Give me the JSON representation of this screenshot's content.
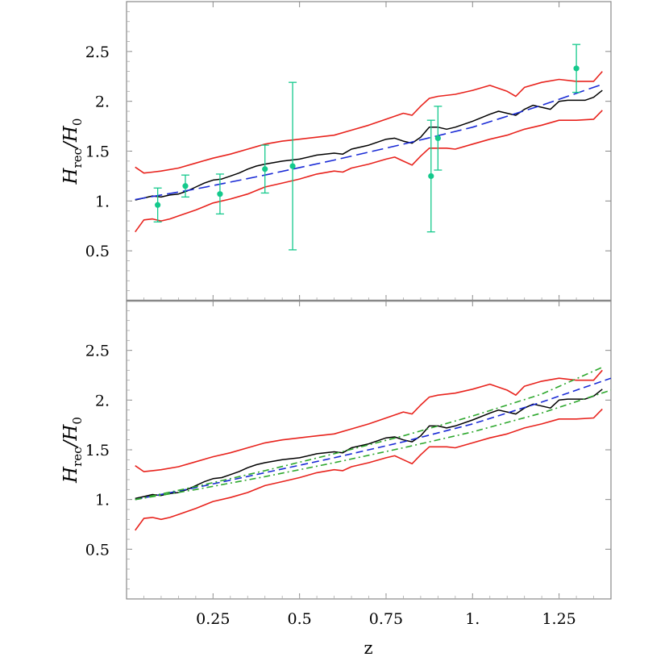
{
  "chart_data": [
    {
      "type": "line",
      "panel": "top",
      "ylabel": {
        "main": "H",
        "sub": "rec",
        "sep": "/",
        "main2": "H",
        "sub2": "0"
      },
      "xlim": [
        0.0,
        1.4
      ],
      "ylim": [
        0.0,
        3.0
      ],
      "yticks": [
        0.5,
        1.0,
        1.5,
        2.0,
        2.5
      ],
      "ytick_labels": [
        "0.5",
        "1.",
        "1.5",
        "2.",
        "2.5"
      ],
      "xticks": [
        0.25,
        0.5,
        0.75,
        1.0,
        1.25
      ],
      "colors": {
        "reconstruction": "#000000",
        "bounds": "#e8231d",
        "model": "#1a2bd6",
        "data": "#14c98c"
      },
      "series": [
        {
          "kind": "reconstruction",
          "style": "solid",
          "x": [
            0.025,
            0.05,
            0.075,
            0.1,
            0.125,
            0.15,
            0.175,
            0.2,
            0.225,
            0.25,
            0.275,
            0.3,
            0.325,
            0.35,
            0.375,
            0.4,
            0.45,
            0.5,
            0.55,
            0.6,
            0.625,
            0.65,
            0.7,
            0.75,
            0.775,
            0.8,
            0.825,
            0.85,
            0.875,
            0.9,
            0.925,
            0.95,
            1.0,
            1.05,
            1.075,
            1.1,
            1.125,
            1.15,
            1.175,
            1.2,
            1.225,
            1.25,
            1.275,
            1.3,
            1.325,
            1.35,
            1.375
          ],
          "y": [
            1.01,
            1.03,
            1.05,
            1.04,
            1.06,
            1.07,
            1.1,
            1.14,
            1.18,
            1.21,
            1.22,
            1.25,
            1.28,
            1.32,
            1.35,
            1.37,
            1.4,
            1.42,
            1.46,
            1.48,
            1.47,
            1.52,
            1.56,
            1.62,
            1.63,
            1.6,
            1.58,
            1.64,
            1.74,
            1.74,
            1.72,
            1.74,
            1.8,
            1.87,
            1.9,
            1.88,
            1.86,
            1.92,
            1.96,
            1.94,
            1.92,
            2.0,
            2.01,
            2.01,
            2.01,
            2.04,
            2.11
          ]
        },
        {
          "kind": "bounds",
          "style": "solid",
          "x": [
            0.025,
            0.05,
            0.075,
            0.1,
            0.15,
            0.2,
            0.25,
            0.3,
            0.35,
            0.4,
            0.45,
            0.5,
            0.55,
            0.6,
            0.65,
            0.7,
            0.75,
            0.8,
            0.825,
            0.85,
            0.875,
            0.9,
            0.95,
            1.0,
            1.05,
            1.1,
            1.125,
            1.15,
            1.2,
            1.25,
            1.3,
            1.35,
            1.375
          ],
          "y": [
            1.34,
            1.28,
            1.29,
            1.3,
            1.33,
            1.38,
            1.43,
            1.47,
            1.52,
            1.57,
            1.6,
            1.62,
            1.64,
            1.66,
            1.71,
            1.76,
            1.82,
            1.88,
            1.86,
            1.95,
            2.03,
            2.05,
            2.07,
            2.11,
            2.16,
            2.1,
            2.05,
            2.14,
            2.19,
            2.22,
            2.2,
            2.2,
            2.3
          ]
        },
        {
          "kind": "bounds",
          "style": "solid",
          "x": [
            0.025,
            0.05,
            0.075,
            0.1,
            0.125,
            0.15,
            0.2,
            0.25,
            0.3,
            0.35,
            0.4,
            0.45,
            0.5,
            0.55,
            0.6,
            0.625,
            0.65,
            0.7,
            0.75,
            0.775,
            0.8,
            0.825,
            0.85,
            0.875,
            0.9,
            0.925,
            0.95,
            1.0,
            1.05,
            1.1,
            1.15,
            1.2,
            1.25,
            1.3,
            1.35,
            1.375
          ],
          "y": [
            0.69,
            0.81,
            0.82,
            0.8,
            0.82,
            0.85,
            0.91,
            0.98,
            1.02,
            1.07,
            1.14,
            1.18,
            1.22,
            1.27,
            1.3,
            1.29,
            1.33,
            1.37,
            1.42,
            1.44,
            1.4,
            1.36,
            1.45,
            1.53,
            1.53,
            1.53,
            1.52,
            1.57,
            1.62,
            1.66,
            1.72,
            1.76,
            1.81,
            1.81,
            1.82,
            1.91
          ]
        },
        {
          "kind": "model",
          "style": "longdash",
          "x": [
            0.025,
            0.2,
            0.4,
            0.6,
            0.8,
            1.0,
            1.2,
            1.375
          ],
          "y": [
            1.015,
            1.12,
            1.26,
            1.41,
            1.57,
            1.74,
            1.96,
            2.17
          ]
        }
      ],
      "points": {
        "z": [
          0.09,
          0.17,
          0.27,
          0.4,
          0.48,
          0.88,
          0.9,
          1.3
        ],
        "H": [
          0.96,
          1.15,
          1.07,
          1.32,
          1.35,
          1.25,
          1.63,
          2.33
        ],
        "err": [
          0.17,
          0.11,
          0.2,
          0.24,
          0.84,
          0.56,
          0.32,
          0.24
        ]
      }
    },
    {
      "type": "line",
      "panel": "bottom",
      "xlabel": "z",
      "ylabel": {
        "main": "H",
        "sub": "rec",
        "sep": "/",
        "main2": "H",
        "sub2": "0"
      },
      "xlim": [
        0.0,
        1.4
      ],
      "ylim": [
        0.0,
        3.0
      ],
      "yticks": [
        0.5,
        1.0,
        1.5,
        2.0,
        2.5
      ],
      "ytick_labels": [
        "0.5",
        "1.",
        "1.5",
        "2.",
        "2.5"
      ],
      "xticks": [
        0.25,
        0.5,
        0.75,
        1.0,
        1.25
      ],
      "xtick_labels": [
        "0.25",
        "0.5",
        "0.75",
        "1.",
        "1.25"
      ],
      "colors": {
        "reconstruction": "#000000",
        "bounds": "#e8231d",
        "model": "#1a2bd6",
        "alt_models": "#2ea82e"
      },
      "series": [
        {
          "kind": "reconstruction",
          "style": "solid",
          "x": [
            0.025,
            0.05,
            0.075,
            0.1,
            0.125,
            0.15,
            0.175,
            0.2,
            0.225,
            0.25,
            0.275,
            0.3,
            0.325,
            0.35,
            0.375,
            0.4,
            0.45,
            0.5,
            0.55,
            0.6,
            0.625,
            0.65,
            0.7,
            0.75,
            0.775,
            0.8,
            0.825,
            0.85,
            0.875,
            0.9,
            0.925,
            0.95,
            1.0,
            1.05,
            1.075,
            1.1,
            1.125,
            1.15,
            1.175,
            1.2,
            1.225,
            1.25,
            1.275,
            1.3,
            1.325,
            1.35,
            1.375
          ],
          "y": [
            1.01,
            1.03,
            1.05,
            1.04,
            1.06,
            1.07,
            1.1,
            1.14,
            1.18,
            1.21,
            1.22,
            1.25,
            1.28,
            1.32,
            1.35,
            1.37,
            1.4,
            1.42,
            1.46,
            1.48,
            1.47,
            1.52,
            1.56,
            1.62,
            1.63,
            1.6,
            1.58,
            1.64,
            1.74,
            1.74,
            1.72,
            1.74,
            1.8,
            1.87,
            1.9,
            1.88,
            1.86,
            1.92,
            1.96,
            1.94,
            1.92,
            2.0,
            2.01,
            2.01,
            2.01,
            2.04,
            2.11
          ]
        },
        {
          "kind": "bounds",
          "style": "solid",
          "x": [
            0.025,
            0.05,
            0.075,
            0.1,
            0.15,
            0.2,
            0.25,
            0.3,
            0.35,
            0.4,
            0.45,
            0.5,
            0.55,
            0.6,
            0.65,
            0.7,
            0.75,
            0.8,
            0.825,
            0.85,
            0.875,
            0.9,
            0.95,
            1.0,
            1.05,
            1.1,
            1.125,
            1.15,
            1.2,
            1.25,
            1.3,
            1.35,
            1.375
          ],
          "y": [
            1.34,
            1.28,
            1.29,
            1.3,
            1.33,
            1.38,
            1.43,
            1.47,
            1.52,
            1.57,
            1.6,
            1.62,
            1.64,
            1.66,
            1.71,
            1.76,
            1.82,
            1.88,
            1.86,
            1.95,
            2.03,
            2.05,
            2.07,
            2.11,
            2.16,
            2.1,
            2.05,
            2.14,
            2.19,
            2.22,
            2.2,
            2.2,
            2.3
          ]
        },
        {
          "kind": "bounds",
          "style": "solid",
          "x": [
            0.025,
            0.05,
            0.075,
            0.1,
            0.125,
            0.15,
            0.2,
            0.25,
            0.3,
            0.35,
            0.4,
            0.45,
            0.5,
            0.55,
            0.6,
            0.625,
            0.65,
            0.7,
            0.75,
            0.775,
            0.8,
            0.825,
            0.85,
            0.875,
            0.9,
            0.925,
            0.95,
            1.0,
            1.05,
            1.1,
            1.15,
            1.2,
            1.25,
            1.3,
            1.35,
            1.375
          ],
          "y": [
            0.69,
            0.81,
            0.82,
            0.8,
            0.82,
            0.85,
            0.91,
            0.98,
            1.02,
            1.07,
            1.14,
            1.18,
            1.22,
            1.27,
            1.3,
            1.29,
            1.33,
            1.37,
            1.42,
            1.44,
            1.4,
            1.36,
            1.45,
            1.53,
            1.53,
            1.53,
            1.52,
            1.57,
            1.62,
            1.66,
            1.72,
            1.76,
            1.81,
            1.81,
            1.82,
            1.91
          ]
        },
        {
          "kind": "model",
          "style": "dash",
          "x": [
            0.025,
            0.2,
            0.4,
            0.6,
            0.8,
            1.0,
            1.2,
            1.4
          ],
          "y": [
            1.0,
            1.12,
            1.27,
            1.42,
            1.58,
            1.76,
            1.98,
            2.22
          ]
        },
        {
          "kind": "alt_models",
          "style": "dashdot",
          "x": [
            0.025,
            0.2,
            0.4,
            0.6,
            0.8,
            1.0,
            1.2,
            1.375
          ],
          "y": [
            1.0,
            1.13,
            1.29,
            1.46,
            1.64,
            1.84,
            2.06,
            2.33
          ]
        },
        {
          "kind": "alt_models",
          "style": "dashdot",
          "x": [
            0.025,
            0.2,
            0.4,
            0.6,
            0.8,
            1.0,
            1.2,
            1.4
          ],
          "y": [
            1.0,
            1.1,
            1.23,
            1.37,
            1.52,
            1.68,
            1.87,
            2.1
          ]
        }
      ]
    }
  ]
}
